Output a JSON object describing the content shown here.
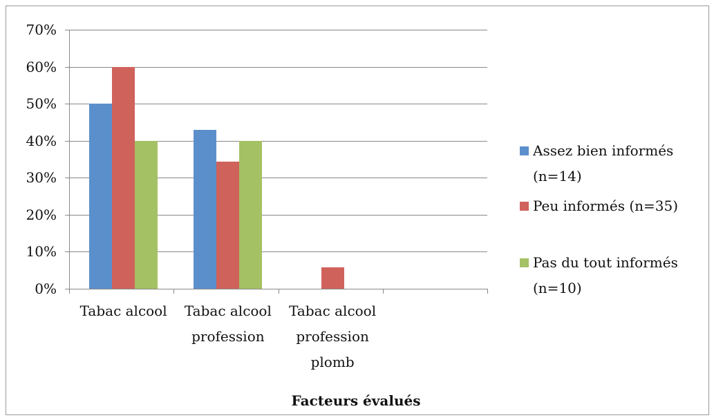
{
  "chart_data": {
    "type": "bar",
    "x_label": "Facteurs évalués",
    "categories": [
      "Tabac alcool",
      "Tabac alcool profession",
      "Tabac alcool profession plomb",
      null
    ],
    "series": [
      {
        "name": "Assez bien informés (n=14)",
        "color": "#5b8fcc",
        "values": [
          50,
          43,
          0,
          null
        ]
      },
      {
        "name": "Peu informés (n=35)",
        "color": "#d0625c",
        "values": [
          60,
          34.3,
          5.7,
          null
        ]
      },
      {
        "name": "Pas du tout informés (n=10)",
        "color": "#a4c164",
        "values": [
          40,
          40,
          0,
          null
        ]
      }
    ],
    "ylim": [
      0,
      70
    ],
    "yticks": [
      {
        "value": 0,
        "label": "0%"
      },
      {
        "value": 10,
        "label": "10%"
      },
      {
        "value": 20,
        "label": "20%"
      },
      {
        "value": 30,
        "label": "30%"
      },
      {
        "value": 40,
        "label": "40%"
      },
      {
        "value": 50,
        "label": "50%"
      },
      {
        "value": 60,
        "label": "60%"
      },
      {
        "value": 70,
        "label": "70%"
      }
    ],
    "grid": true,
    "legend": "right"
  }
}
